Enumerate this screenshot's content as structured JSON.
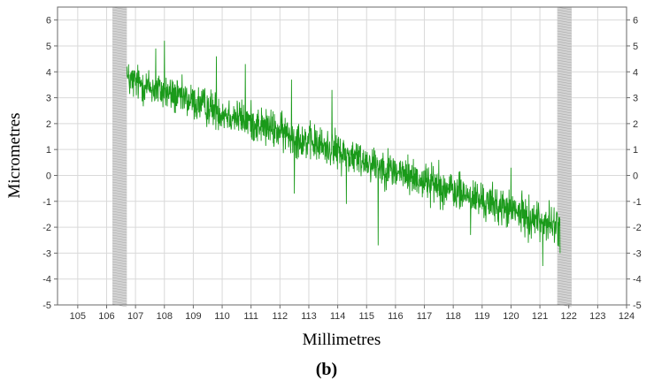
{
  "chart_data": {
    "type": "line",
    "xlabel": "Millimetres",
    "ylabel": "Micrometres",
    "xlim": [
      104.3,
      124.0
    ],
    "ylim": [
      -5,
      6.5
    ],
    "x_ticks": [
      105,
      106,
      107,
      108,
      109,
      110,
      111,
      112,
      113,
      114,
      115,
      116,
      117,
      118,
      119,
      120,
      121,
      122,
      123,
      124
    ],
    "y_ticks": [
      -5,
      -4,
      -3,
      -2,
      -1,
      0,
      1,
      2,
      3,
      4,
      5,
      6
    ],
    "grid": true,
    "excluded_bands": [
      {
        "from": 106.2,
        "to": 106.7
      },
      {
        "from": 121.6,
        "to": 122.1
      }
    ],
    "series": [
      {
        "color": "#1a9a1a",
        "trend": {
          "x": [
            106.7,
            121.7
          ],
          "y": [
            3.7,
            -2.0
          ]
        },
        "noise_amplitude": 0.45,
        "points": [
          {
            "x": 106.7,
            "y": 4.2
          },
          {
            "x": 107.2,
            "y": 3.7
          },
          {
            "x": 107.7,
            "y": 4.9
          },
          {
            "x": 108.0,
            "y": 5.2
          },
          {
            "x": 108.5,
            "y": 3.3
          },
          {
            "x": 109.0,
            "y": 2.8
          },
          {
            "x": 109.8,
            "y": 4.6
          },
          {
            "x": 110.5,
            "y": 2.2
          },
          {
            "x": 110.8,
            "y": 4.3
          },
          {
            "x": 111.5,
            "y": 1.7
          },
          {
            "x": 112.4,
            "y": 3.7
          },
          {
            "x": 112.5,
            "y": -0.7
          },
          {
            "x": 113.0,
            "y": 1.2
          },
          {
            "x": 113.8,
            "y": 3.3
          },
          {
            "x": 114.3,
            "y": -1.1
          },
          {
            "x": 115.0,
            "y": 0.3
          },
          {
            "x": 115.4,
            "y": -2.7
          },
          {
            "x": 116.0,
            "y": -0.3
          },
          {
            "x": 116.8,
            "y": -0.7
          },
          {
            "x": 117.5,
            "y": 0.6
          },
          {
            "x": 118.0,
            "y": -1.0
          },
          {
            "x": 118.6,
            "y": -2.3
          },
          {
            "x": 119.0,
            "y": -1.3
          },
          {
            "x": 120.0,
            "y": 0.3
          },
          {
            "x": 120.6,
            "y": -2.6
          },
          {
            "x": 121.1,
            "y": -3.5
          },
          {
            "x": 121.5,
            "y": -2.6
          },
          {
            "x": 121.7,
            "y": -3.0
          }
        ]
      }
    ]
  },
  "caption": {
    "text": "(b)"
  }
}
